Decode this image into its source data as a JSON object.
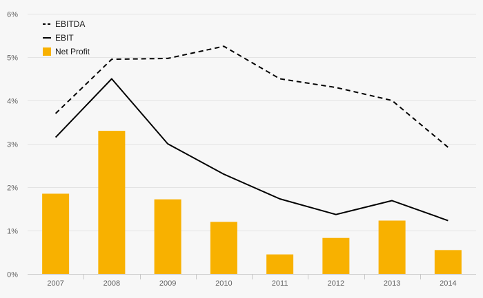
{
  "chart_data": {
    "type": "bar",
    "categories": [
      "2007",
      "2008",
      "2009",
      "2010",
      "2011",
      "2012",
      "2013",
      "2014"
    ],
    "series": [
      {
        "name": "EBITDA",
        "type": "line",
        "style": "dashed",
        "color": "#000000",
        "values": [
          3.7,
          4.95,
          4.97,
          5.25,
          4.5,
          4.3,
          4.0,
          2.92
        ]
      },
      {
        "name": "EBIT",
        "type": "line",
        "style": "solid",
        "color": "#000000",
        "values": [
          3.15,
          4.5,
          3.0,
          2.3,
          1.73,
          1.37,
          1.69,
          1.23
        ]
      },
      {
        "name": "Net Profit",
        "type": "bar",
        "color": "#f8b100",
        "values": [
          1.85,
          3.3,
          1.72,
          1.2,
          0.45,
          0.83,
          1.23,
          0.55
        ]
      }
    ],
    "ylim": [
      0,
      6
    ],
    "yticks": [
      "0%",
      "1%",
      "2%",
      "3%",
      "4%",
      "5%",
      "6%"
    ],
    "grid": true,
    "legend_position": "top-left"
  }
}
